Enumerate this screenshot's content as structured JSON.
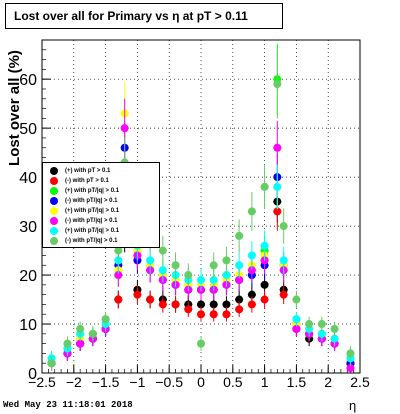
{
  "title": "Lost over all for Primary vs   η at pT > 0.11",
  "footer": "Wed May 23 11:18:01 2018",
  "chart_data": {
    "type": "scatter",
    "title": "Lost over all for Primary vs   η at pT > 0.11",
    "xlabel": "η",
    "ylabel": "Lost over all (%)",
    "xlim": [
      -2.5,
      2.5
    ],
    "ylim": [
      0,
      68
    ],
    "xticks": [
      "−2.5",
      "−2",
      "−1.5",
      "−1",
      "−0.5",
      "0",
      "0.5",
      "1",
      "1.5",
      "2",
      "2.5"
    ],
    "yticks": [
      "0",
      "10",
      "20",
      "30",
      "40",
      "50",
      "60"
    ],
    "grid": true,
    "legend_position": "left-middle",
    "series": [
      {
        "name": "(+) with pT > 0.1",
        "color": "#000000",
        "x": [
          -2.35,
          -2.1,
          -1.9,
          -1.7,
          -1.5,
          -1.3,
          -1.2,
          -1.0,
          -0.8,
          -0.6,
          -0.4,
          -0.2,
          0.0,
          0.2,
          0.4,
          0.6,
          0.8,
          1.0,
          1.2,
          1.3,
          1.5,
          1.7,
          1.9,
          2.1,
          2.35
        ],
        "y": [
          2,
          4,
          6,
          7,
          9,
          15,
          28,
          17,
          15,
          15,
          14,
          14,
          14,
          14,
          14,
          15,
          16,
          18,
          35,
          17,
          9,
          7,
          7,
          6,
          2
        ]
      },
      {
        "name": "(-) with pT > 0.1",
        "color": "#ff0000",
        "x": [
          -2.35,
          -2.1,
          -1.9,
          -1.7,
          -1.5,
          -1.3,
          -1.2,
          -1.0,
          -0.8,
          -0.6,
          -0.4,
          -0.2,
          0.0,
          0.2,
          0.4,
          0.6,
          0.8,
          1.0,
          1.2,
          1.3,
          1.5,
          1.7,
          1.9,
          2.1,
          2.35
        ],
        "y": [
          2,
          4,
          6,
          7,
          9,
          15,
          29,
          16,
          15,
          14,
          14,
          13,
          12,
          12,
          12,
          13,
          14,
          15,
          33,
          16,
          9,
          8,
          7,
          6,
          2
        ]
      },
      {
        "name": "(+) with pT/|q| > 0.1",
        "color": "#00ff00",
        "x": [
          -2.35,
          -2.1,
          -1.9,
          -1.7,
          -1.5,
          -1.3,
          -1.2,
          -1.0,
          -0.8,
          -0.6,
          -0.4,
          -0.2,
          0.0,
          0.2,
          0.4,
          0.6,
          0.8,
          1.0,
          1.2,
          1.3,
          1.5,
          1.7,
          1.9,
          2.1,
          2.35
        ],
        "y": [
          3,
          5,
          7,
          8,
          10,
          20,
          38,
          24,
          22,
          20,
          18,
          18,
          17,
          17,
          18,
          19,
          20,
          25,
          60,
          21,
          10,
          8,
          8,
          7,
          3
        ]
      },
      {
        "name": "(-) with pT/|q| > 0.1",
        "color": "#0000ff",
        "x": [
          -2.35,
          -2.1,
          -1.9,
          -1.7,
          -1.5,
          -1.3,
          -1.2,
          -1.0,
          -0.8,
          -0.6,
          -0.4,
          -0.2,
          0.0,
          0.2,
          0.4,
          0.6,
          0.8,
          1.0,
          1.2,
          1.3,
          1.5,
          1.7,
          1.9,
          2.1,
          2.35
        ],
        "y": [
          2,
          4,
          6,
          7,
          9,
          22,
          46,
          23,
          21,
          19,
          18,
          17,
          17,
          17,
          18,
          19,
          20,
          22,
          40,
          22,
          10,
          8,
          7,
          6,
          2
        ]
      },
      {
        "name": "(+) with pT/|q| > 0.1",
        "color": "#ffff00",
        "x": [
          -2.35,
          -2.1,
          -1.9,
          -1.7,
          -1.5,
          -1.3,
          -1.2,
          -1.0,
          -0.8,
          -0.6,
          -0.4,
          -0.2,
          0.0,
          0.2,
          0.4,
          0.6,
          0.8,
          1.0,
          1.2,
          1.3,
          1.5,
          1.7,
          1.9,
          2.1,
          2.35
        ],
        "y": [
          3,
          5,
          7,
          8,
          10,
          21,
          53,
          25,
          22,
          20,
          19,
          18,
          18,
          18,
          19,
          20,
          22,
          24,
          38,
          22,
          10,
          8,
          8,
          7,
          3
        ]
      },
      {
        "name": "(-) with pT/|q| > 0.1",
        "color": "#ff00ff",
        "x": [
          -2.35,
          -2.1,
          -1.9,
          -1.7,
          -1.5,
          -1.3,
          -1.2,
          -1.0,
          -0.8,
          -0.6,
          -0.4,
          -0.2,
          0.0,
          0.2,
          0.4,
          0.6,
          0.8,
          1.0,
          1.2,
          1.3,
          1.5,
          1.7,
          1.9,
          2.1,
          2.35
        ],
        "y": [
          2,
          4,
          6,
          7,
          9,
          20,
          50,
          24,
          21,
          19,
          18,
          17,
          17,
          17,
          18,
          19,
          21,
          23,
          46,
          21,
          9,
          8,
          7,
          6,
          1
        ]
      },
      {
        "name": "(+) with pT/|q| > 0.1",
        "color": "#00ffff",
        "x": [
          -2.35,
          -2.1,
          -1.9,
          -1.7,
          -1.5,
          -1.3,
          -1.2,
          -1.0,
          -0.8,
          -0.6,
          -0.4,
          -0.2,
          0.0,
          0.2,
          0.4,
          0.6,
          0.8,
          1.0,
          1.2,
          1.3,
          1.5,
          1.7,
          1.9,
          2.1,
          2.35
        ],
        "y": [
          3,
          5,
          8,
          8,
          10,
          23,
          35,
          26,
          23,
          21,
          20,
          19,
          19,
          19,
          20,
          22,
          24,
          26,
          38,
          23,
          11,
          9,
          8,
          7,
          3
        ]
      },
      {
        "name": "(-) with pT/|q| > 0.1",
        "color": "#66cc66",
        "x": [
          -2.35,
          -2.1,
          -1.9,
          -1.7,
          -1.5,
          -1.3,
          -1.2,
          -1.0,
          -0.8,
          -0.6,
          -0.4,
          -0.2,
          0.0,
          0.2,
          0.4,
          0.6,
          0.8,
          1.0,
          1.2,
          1.3,
          1.5,
          1.7,
          1.9,
          2.1,
          2.35
        ],
        "y": [
          2,
          6,
          9,
          8,
          11,
          25,
          43,
          35,
          28,
          25,
          22,
          20,
          6,
          22,
          23,
          28,
          33,
          38,
          59,
          30,
          15,
          10,
          10,
          9,
          4
        ]
      }
    ]
  }
}
